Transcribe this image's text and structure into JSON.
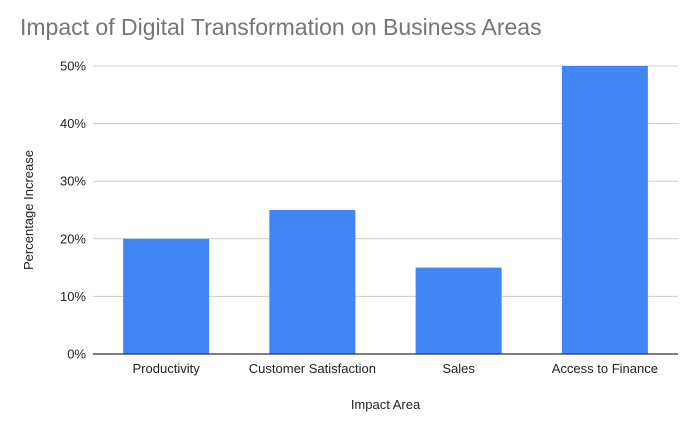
{
  "chart_data": {
    "type": "bar",
    "title": "Impact of Digital Transformation on Business Areas",
    "xlabel": "Impact Area",
    "ylabel": "Percentage Increase",
    "categories": [
      "Productivity",
      "Customer Satisfaction",
      "Sales",
      "Access to Finance"
    ],
    "values": [
      20,
      25,
      15,
      50
    ],
    "ylim": [
      0,
      50
    ],
    "yticks": [
      0,
      10,
      20,
      30,
      40,
      50
    ],
    "ytick_labels": [
      "0%",
      "10%",
      "20%",
      "30%",
      "40%",
      "50%"
    ],
    "grid": true,
    "legend": "none",
    "colors": {
      "bar": "#4285f4",
      "grid": "#cccccc",
      "axis": "#333333",
      "title": "#757575"
    }
  }
}
